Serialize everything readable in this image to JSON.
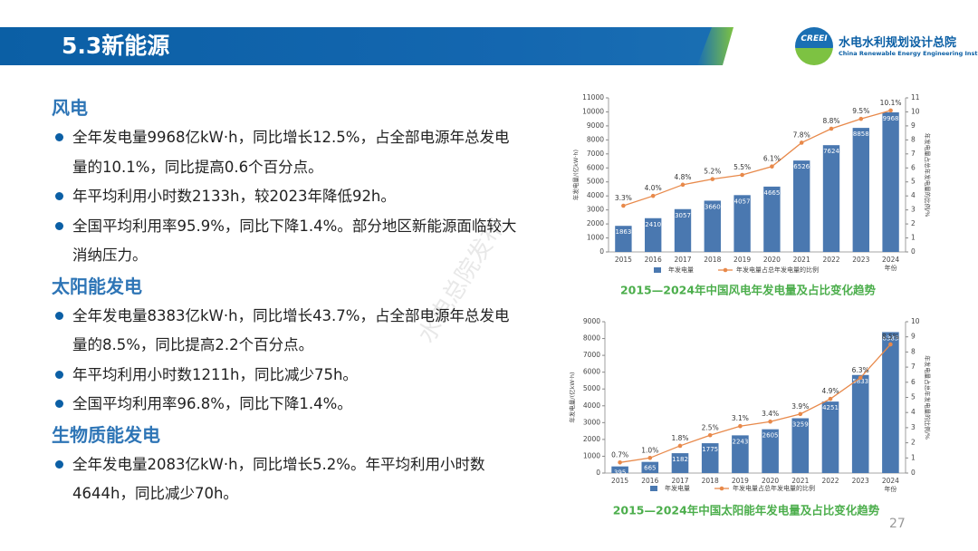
{
  "header": {
    "title": "5.3新能源",
    "logo": "CREEI",
    "org_name": "水电水利规划设计总院",
    "org_name_en": "China Renewable Energy Engineering Institute"
  },
  "sections": [
    {
      "heading": "风电",
      "bullets": [
        "全年发电量9968亿kW·h，同比增长12.5%，占全部电源年总发电量的10.1%，同比提高0.6个百分点。",
        "年平均利用小时数2133h，较2023年降低92h。",
        "全国平均利用率95.9%，同比下降1.4%。部分地区新能源面临较大消纳压力。"
      ]
    },
    {
      "heading": "太阳能发电",
      "bullets": [
        "全年发电量8383亿kW·h，同比增长43.7%，占全部电源年总发电量的8.5%，同比提高2.2个百分点。",
        "年平均利用小时数1211h，同比减少75h。",
        "全国平均利用率96.8%，同比下降1.4%。"
      ]
    },
    {
      "heading": "生物质能发电",
      "bullets": [
        "全年发电量2083亿kW·h，同比增长5.2%。年平均利用小时数4644h，同比减少70h。"
      ]
    }
  ],
  "watermark": "水电总院发布",
  "page_number": 27,
  "chart_data": [
    {
      "type": "combo",
      "title": "2015—2024年中国风电年发电量及占比变化趋势",
      "ylabel": "年发电量/(亿kW·h)",
      "y2label": "年发电量占总年发电量的比例/%",
      "xlabel": "年份",
      "categories": [
        "2015",
        "2016",
        "2017",
        "2018",
        "2019",
        "2020",
        "2021",
        "2022",
        "2023",
        "2024"
      ],
      "series": [
        {
          "name": "年发电量",
          "kind": "bar",
          "color": "#4a78b0",
          "values": [
            1863,
            2410,
            3057,
            3660,
            4057,
            4665,
            6526,
            7624,
            8858,
            9968
          ]
        },
        {
          "name": "年发电量占总年发电量的比例",
          "kind": "line",
          "axis": "y2",
          "color": "#e8894a",
          "values": [
            3.3,
            4.0,
            4.8,
            5.2,
            5.5,
            6.1,
            7.8,
            8.8,
            9.5,
            10.1
          ],
          "value_labels": [
            "3.3%",
            "4.0%",
            "4.8%",
            "5.2%",
            "5.5%",
            "6.1%",
            "7.8%",
            "8.8%",
            "9.5%",
            "10.1%"
          ]
        }
      ],
      "ylim": [
        0,
        11000
      ],
      "yticks": [
        0,
        1000,
        2000,
        3000,
        4000,
        5000,
        6000,
        7000,
        8000,
        9000,
        10000,
        11000
      ],
      "y2lim": [
        0,
        11
      ],
      "y2ticks": [
        0,
        1,
        2,
        3,
        4,
        5,
        6,
        7,
        8,
        9,
        10,
        11
      ],
      "grid": false
    },
    {
      "type": "combo",
      "title": "2015—2024年中国太阳能年发电量及占比变化趋势",
      "ylabel": "年发电量/(亿kW·h)",
      "y2label": "年发电量占总年发电量的比例/%",
      "xlabel": "年份",
      "categories": [
        "2015",
        "2016",
        "2017",
        "2018",
        "2019",
        "2020",
        "2021",
        "2022",
        "2023",
        "2024"
      ],
      "series": [
        {
          "name": "年发电量",
          "kind": "bar",
          "color": "#4a78b0",
          "values": [
            395,
            665,
            1182,
            1775,
            2243,
            2605,
            3259,
            4251,
            5833,
            8383
          ]
        },
        {
          "name": "年发电量占总年发电量的比例",
          "kind": "line",
          "axis": "y2",
          "color": "#e8894a",
          "values": [
            0.7,
            1.0,
            1.8,
            2.5,
            3.1,
            3.4,
            3.9,
            4.9,
            6.3,
            8.5
          ],
          "value_labels": [
            "0.7%",
            "1.0%",
            "1.8%",
            "2.5%",
            "3.1%",
            "3.4%",
            "3.9%",
            "4.9%",
            "6.3%",
            "8.5%"
          ]
        }
      ],
      "ylim": [
        0,
        9000
      ],
      "yticks": [
        0,
        1000,
        2000,
        3000,
        4000,
        5000,
        6000,
        7000,
        8000,
        9000
      ],
      "y2lim": [
        0,
        10
      ],
      "y2ticks": [
        0,
        1,
        2,
        3,
        4,
        5,
        6,
        7,
        8,
        9,
        10
      ],
      "grid": false
    }
  ]
}
